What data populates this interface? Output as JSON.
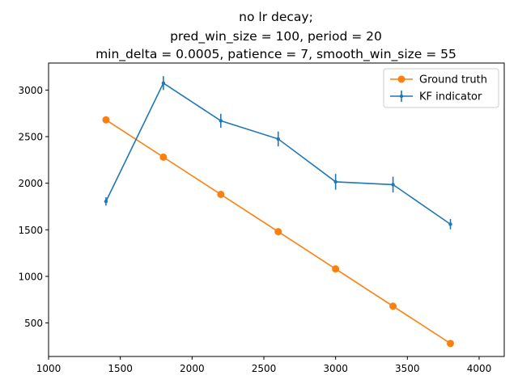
{
  "chart_data": {
    "type": "line",
    "title_lines": [
      "no lr decay;",
      "pred_win_size = 100, period = 20",
      "min_delta = 0.0005, patience = 7, smooth_win_size = 55"
    ],
    "xlabel": "",
    "ylabel": "",
    "xlim": [
      1000,
      4175
    ],
    "ylim": [
      140,
      3290
    ],
    "xticks": [
      1000,
      1500,
      2000,
      2500,
      3000,
      3500,
      4000
    ],
    "yticks": [
      500,
      1000,
      1500,
      2000,
      2500,
      3000
    ],
    "grid": false,
    "legend_position": "top-right",
    "series": [
      {
        "name": "Ground truth",
        "color": "#ff7f0e",
        "marker": "circle",
        "x": [
          1400,
          1800,
          2200,
          2600,
          3000,
          3400,
          3800
        ],
        "y": [
          2680,
          2280,
          1880,
          1480,
          1080,
          680,
          280
        ]
      },
      {
        "name": "KF indicator",
        "color": "#1f77b4",
        "marker": "point",
        "x": [
          1400,
          1800,
          2200,
          2600,
          3000,
          3400,
          3800
        ],
        "y": [
          1805,
          3075,
          2670,
          2475,
          2015,
          1985,
          1560
        ],
        "yerr": [
          45,
          75,
          75,
          80,
          85,
          85,
          55
        ]
      }
    ]
  }
}
